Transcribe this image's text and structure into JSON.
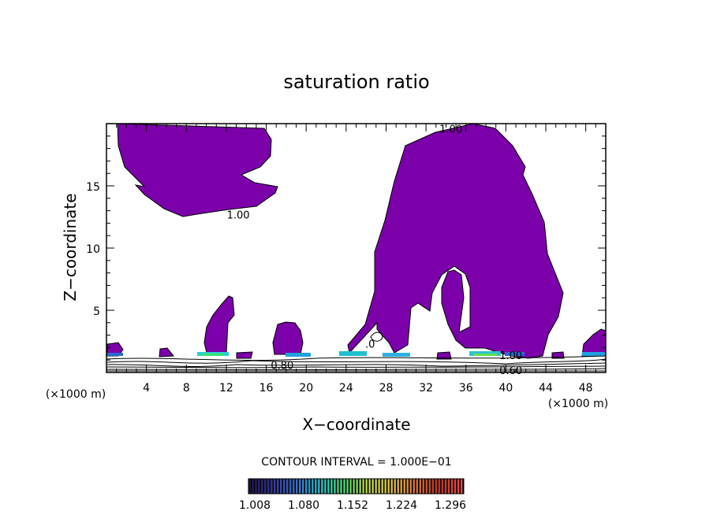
{
  "chart_data": {
    "type": "contour",
    "title": "saturation ratio",
    "xlabel": "X−coordinate",
    "ylabel": "Z−coordinate",
    "x_unit": "(×1000 m)",
    "xlim": [
      0,
      50
    ],
    "ylim": [
      0,
      20
    ],
    "x_ticks": [
      4,
      8,
      12,
      16,
      20,
      24,
      28,
      32,
      36,
      40,
      44,
      48
    ],
    "x_tick_labels": [
      "4",
      "8",
      "12",
      "16",
      "20",
      "24",
      "28",
      "32",
      "36",
      "40",
      "44",
      "48"
    ],
    "y_ticks": [
      5,
      10,
      15
    ],
    "y_tick_labels": [
      "5",
      "10",
      "15"
    ],
    "contour_interval_text": "CONTOUR INTERVAL = 1.000E−01",
    "contour_labels": [
      {
        "text": "1.00",
        "x": 34.5,
        "z": 19.6
      },
      {
        "text": "1.00",
        "x": 13.2,
        "z": 12.7
      },
      {
        "text": "0.80",
        "x": 17.6,
        "z": 0.6
      },
      {
        "text": "0.60",
        "x": 40.5,
        "z": 0.2
      },
      {
        "text": "1.00",
        "x": 40.5,
        "z": 1.4
      },
      {
        "text": ".0",
        "x": 26.4,
        "z": 2.3
      }
    ],
    "colorbar": {
      "tick_labels": [
        "1.008",
        "1.080",
        "1.152",
        "1.224",
        "1.296"
      ],
      "range": [
        1.0,
        1.3
      ],
      "colors": [
        "#1a0a4a",
        "#2a2aa0",
        "#2a6ad0",
        "#20c0d0",
        "#40e070",
        "#c0e040",
        "#e0c040",
        "#e07030",
        "#c03020",
        "#ff4444"
      ]
    },
    "fill_color": "#7b00aa",
    "regions": [
      {
        "name": "upper-left-cloud",
        "x_range": [
          0.5,
          17
        ],
        "z_range": [
          12.5,
          20
        ]
      },
      {
        "name": "main-plume",
        "x_range": [
          24,
          45
        ],
        "z_range": [
          1.5,
          20
        ]
      },
      {
        "name": "small-cloud-11",
        "x_range": [
          9.5,
          12.5
        ],
        "z_range": [
          1.3,
          6
        ]
      },
      {
        "name": "small-cloud-18",
        "x_range": [
          16.5,
          20
        ],
        "z_range": [
          1.3,
          4
        ]
      }
    ]
  }
}
